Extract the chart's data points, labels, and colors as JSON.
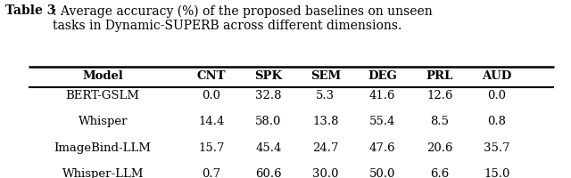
{
  "title_bold": "Table 3",
  "title_rest": ": Average accuracy (%) of the proposed baselines on unseen\ntasks in Dynamic-SUPERB across different dimensions.",
  "columns": [
    "Model",
    "CNT",
    "SPK",
    "SEM",
    "DEG",
    "PRL",
    "AUD"
  ],
  "rows": [
    [
      "BERT-GSLM",
      "0.0",
      "32.8",
      "5.3",
      "41.6",
      "12.6",
      "0.0"
    ],
    [
      "Whisper",
      "14.4",
      "58.0",
      "13.8",
      "55.4",
      "8.5",
      "0.8"
    ],
    [
      "ImageBind-LLM",
      "15.7",
      "45.4",
      "24.7",
      "47.6",
      "20.6",
      "35.7"
    ],
    [
      "Whisper-LLM",
      "0.7",
      "60.6",
      "30.0",
      "50.0",
      "6.6",
      "15.0"
    ]
  ],
  "bg_color": "#ffffff",
  "text_color": "#000000",
  "font_size": 9.5,
  "title_font_size": 10.0
}
